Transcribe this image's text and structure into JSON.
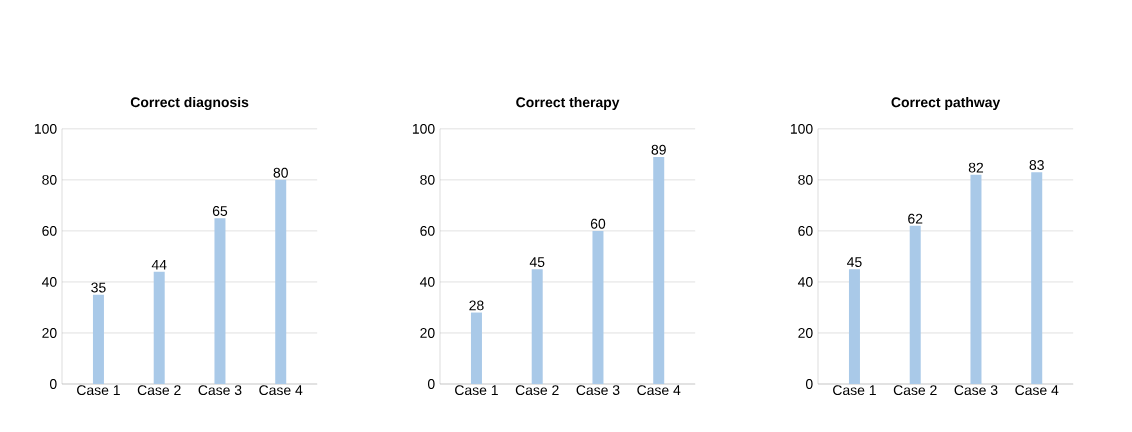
{
  "chart_data": [
    {
      "type": "bar",
      "title": "Correct diagnosis",
      "categories": [
        "Case 1",
        "Case 2",
        "Case 3",
        "Case 4"
      ],
      "values": [
        35,
        44,
        65,
        80
      ],
      "color": "#a9c9e8",
      "ylim": [
        0,
        100
      ],
      "yticks": [
        0,
        20,
        40,
        60,
        80,
        100
      ],
      "grid": "y",
      "data_labels": true
    },
    {
      "type": "bar",
      "title": "Correct therapy",
      "categories": [
        "Case 1",
        "Case 2",
        "Case 3",
        "Case 4"
      ],
      "values": [
        28,
        45,
        60,
        89
      ],
      "color": "#a9c9e8",
      "ylim": [
        0,
        100
      ],
      "yticks": [
        0,
        20,
        40,
        60,
        80,
        100
      ],
      "grid": "y",
      "data_labels": true
    },
    {
      "type": "bar",
      "title": "Correct pathway",
      "categories": [
        "Case 1",
        "Case 2",
        "Case 3",
        "Case 4"
      ],
      "values": [
        45,
        62,
        82,
        83
      ],
      "color": "#a9c9e8",
      "ylim": [
        0,
        100
      ],
      "yticks": [
        0,
        20,
        40,
        60,
        80,
        100
      ],
      "grid": "y",
      "data_labels": true
    }
  ]
}
